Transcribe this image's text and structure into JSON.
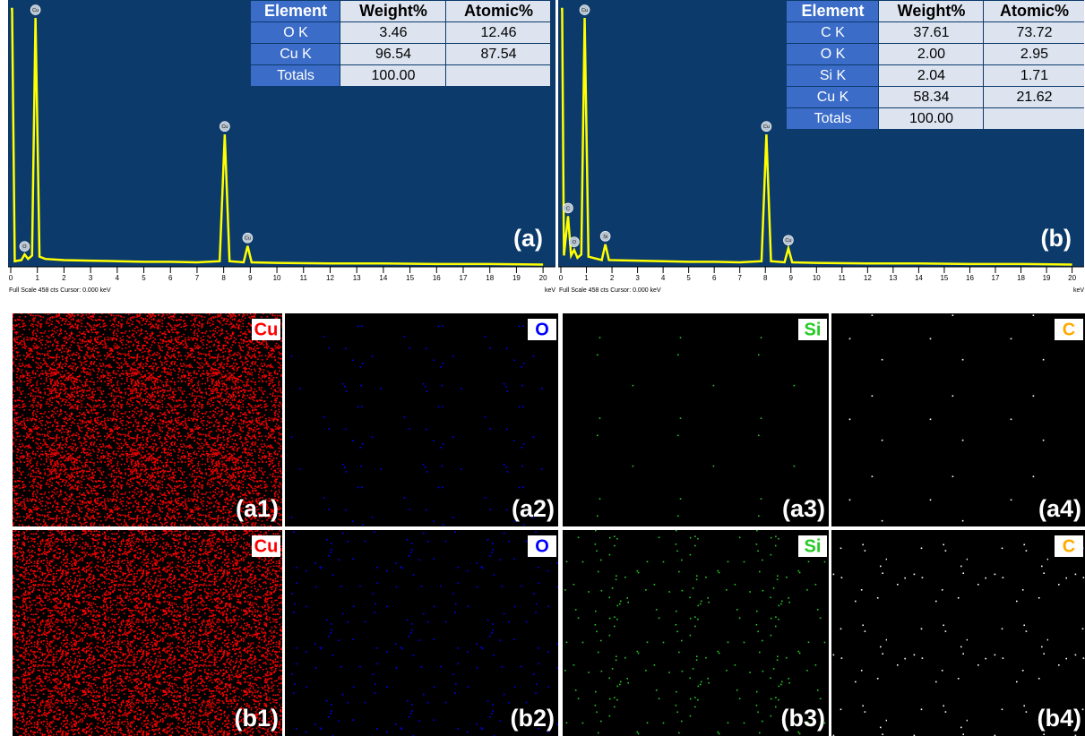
{
  "chart_data": [
    {
      "type": "line",
      "panel_label": "(a)",
      "color": "#ffff00",
      "x": [
        0,
        0.05,
        0.15,
        0.4,
        0.52,
        0.65,
        0.8,
        0.93,
        1.08,
        1.3,
        2,
        3,
        4,
        5,
        6,
        7,
        7.85,
        8.04,
        8.22,
        8.75,
        8.9,
        9.05,
        10,
        12,
        14,
        16,
        18,
        20
      ],
      "values": [
        458,
        458,
        10,
        12,
        22,
        14,
        20,
        442,
        18,
        14,
        12,
        11,
        10,
        9,
        9,
        8,
        10,
        235,
        10,
        8,
        37,
        8,
        7,
        6,
        6,
        5,
        5,
        4
      ],
      "xlim": [
        0,
        20.4
      ],
      "ylim": [
        0,
        458
      ],
      "xticks": [
        0,
        1,
        2,
        3,
        4,
        5,
        6,
        7,
        8,
        9,
        10,
        11,
        12,
        13,
        14,
        15,
        16,
        17,
        18,
        19,
        20
      ],
      "x_label": "keV",
      "footer": "Full Scale 458 cts  Cursor: 0.000 keV",
      "peaks": [
        {
          "text": "O",
          "x": 0.52
        },
        {
          "text": "Cu",
          "x": 0.93
        },
        {
          "text": "Cu",
          "x": 8.04
        },
        {
          "text": "Cu",
          "x": 8.9
        }
      ],
      "table": {
        "header": [
          "Element",
          "Weight%",
          "Atomic%"
        ],
        "rows": [
          [
            "O K",
            "3.46",
            "12.46"
          ],
          [
            "Cu K",
            "96.54",
            "87.54"
          ],
          [
            "Totals",
            "100.00",
            ""
          ]
        ]
      }
    },
    {
      "type": "line",
      "panel_label": "(b)",
      "color": "#ffff00",
      "x": [
        0,
        0.05,
        0.12,
        0.28,
        0.4,
        0.52,
        0.65,
        0.8,
        0.93,
        1.08,
        1.6,
        1.74,
        1.88,
        3,
        4,
        5,
        6,
        7,
        7.85,
        8.04,
        8.22,
        8.75,
        8.9,
        9.05,
        10,
        12,
        14,
        16,
        18,
        20
      ],
      "values": [
        458,
        458,
        20,
        90,
        20,
        30,
        16,
        22,
        442,
        18,
        12,
        40,
        12,
        11,
        10,
        9,
        9,
        8,
        10,
        235,
        10,
        8,
        33,
        8,
        7,
        6,
        6,
        5,
        5,
        4
      ],
      "xlim": [
        0,
        20.4
      ],
      "ylim": [
        0,
        458
      ],
      "xticks": [
        0,
        1,
        2,
        3,
        4,
        5,
        6,
        7,
        8,
        9,
        10,
        11,
        12,
        13,
        14,
        15,
        16,
        17,
        18,
        19,
        20
      ],
      "x_label": "keV",
      "footer": "Full Scale 458 cts  Cursor: 0.000 keV",
      "peaks": [
        {
          "text": "C",
          "x": 0.28
        },
        {
          "text": "O",
          "x": 0.52
        },
        {
          "text": "Cu",
          "x": 0.93
        },
        {
          "text": "Si",
          "x": 1.74
        },
        {
          "text": "Cu",
          "x": 8.04
        },
        {
          "text": "Cu",
          "x": 8.9
        }
      ],
      "table": {
        "header": [
          "Element",
          "Weight%",
          "Atomic%"
        ],
        "rows": [
          [
            "C K",
            "37.61",
            "73.72"
          ],
          [
            "O K",
            "2.00",
            "2.95"
          ],
          [
            "Si K",
            "2.04",
            "1.71"
          ],
          [
            "Cu K",
            "58.34",
            "21.62"
          ],
          [
            "Totals",
            "100.00",
            ""
          ]
        ]
      }
    }
  ],
  "maps": [
    [
      {
        "element": "Cu",
        "color": "#ff0000",
        "label": "(a1)"
      },
      {
        "element": "O",
        "color": "#0000ff",
        "label": "(a2)"
      },
      {
        "element": "Si",
        "color": "#22cc22",
        "label": "(a3)"
      },
      {
        "element": "C",
        "color": "#ffaa00",
        "label": "(a4)"
      }
    ],
    [
      {
        "element": "Cu",
        "color": "#ff0000",
        "label": "(b1)"
      },
      {
        "element": "O",
        "color": "#0000ff",
        "label": "(b2)"
      },
      {
        "element": "Si",
        "color": "#22cc22",
        "label": "(b3)"
      },
      {
        "element": "C",
        "color": "#ffaa00",
        "label": "(b4)"
      }
    ]
  ]
}
